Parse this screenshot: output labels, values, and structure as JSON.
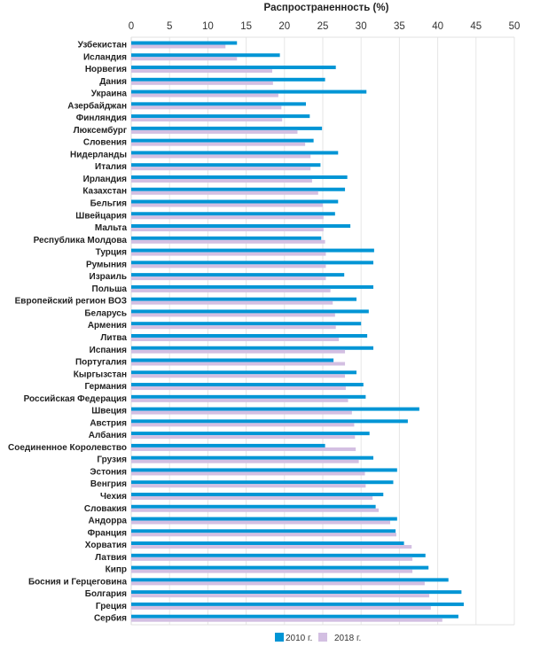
{
  "chart_data": {
    "type": "bar",
    "orientation": "horizontal",
    "title": "Распространенность (%)",
    "xlabel": "Распространенность (%)",
    "ylabel": "",
    "xlim": [
      0,
      50
    ],
    "xticks": [
      0,
      5,
      10,
      15,
      20,
      25,
      30,
      35,
      40,
      45,
      50
    ],
    "grid": true,
    "legend_position": "bottom",
    "colors": {
      "2010 г.": "#0095d5",
      "2018 г.": "#d3bfe2"
    },
    "categories": [
      "Узбекистан",
      "Исландия",
      "Норвегия",
      "Дания",
      "Украина",
      "Азербайджан",
      "Финляндия",
      "Люксембург",
      "Словения",
      "Нидерланды",
      "Италия",
      "Ирландия",
      "Казахстан",
      "Бельгия",
      "Швейцария",
      "Мальта",
      "Республика Молдова",
      "Турция",
      "Румыния",
      "Израиль",
      "Польша",
      "Европейский регион ВОЗ",
      "Беларусь",
      "Армения",
      "Литва",
      "Испания",
      "Португалия",
      "Кыргызстан",
      "Германия",
      "Российская Федерация",
      "Швеция",
      "Австрия",
      "Албания",
      "Соединенное Королевство",
      "Грузия",
      "Эстония",
      "Венгрия",
      "Чехия",
      "Словакия",
      "Андорра",
      "Франция",
      "Хорватия",
      "Латвия",
      "Кипр",
      "Босния и Герцеговина",
      "Болгария",
      "Греция",
      "Сербия"
    ],
    "series": [
      {
        "name": "2010 г.",
        "values": [
          13.8,
          19.4,
          26.7,
          25.3,
          30.7,
          22.8,
          23.3,
          24.9,
          23.8,
          27.0,
          24.7,
          28.2,
          27.9,
          27.0,
          26.6,
          28.6,
          24.8,
          31.7,
          31.6,
          27.8,
          31.6,
          29.4,
          31.0,
          30.0,
          30.8,
          31.6,
          26.4,
          29.4,
          30.3,
          30.6,
          37.6,
          36.1,
          31.1,
          25.3,
          31.6,
          34.7,
          34.2,
          32.9,
          31.9,
          34.7,
          34.5,
          35.6,
          38.4,
          38.8,
          41.4,
          43.1,
          43.4,
          42.7
        ]
      },
      {
        "name": "2018 г.",
        "values": [
          12.3,
          13.8,
          18.4,
          18.5,
          19.2,
          19.6,
          19.7,
          21.7,
          22.7,
          23.4,
          23.4,
          23.6,
          24.4,
          25.0,
          25.1,
          25.1,
          25.3,
          25.4,
          25.4,
          25.4,
          26.0,
          26.3,
          26.6,
          26.7,
          27.1,
          27.9,
          27.9,
          27.9,
          28.0,
          28.3,
          28.8,
          29.1,
          29.2,
          29.3,
          29.7,
          30.5,
          30.6,
          31.5,
          32.3,
          33.8,
          34.6,
          36.6,
          36.7,
          36.7,
          38.3,
          38.9,
          39.1,
          40.6
        ]
      }
    ]
  }
}
